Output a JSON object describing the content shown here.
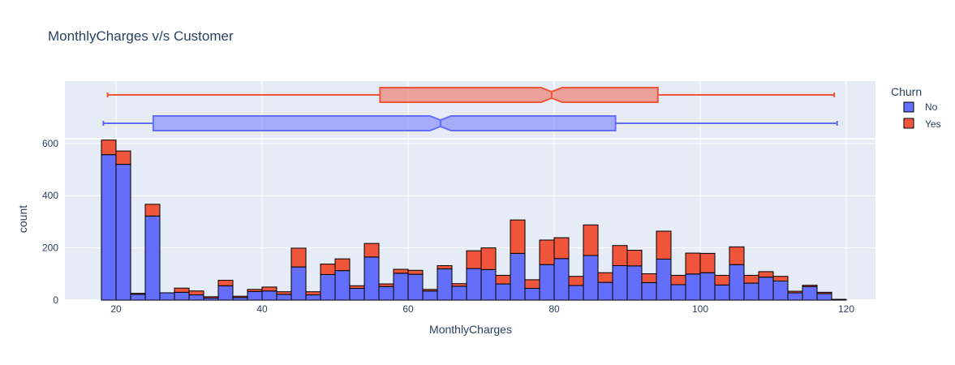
{
  "chart_data": {
    "type": "bar",
    "title": "MonthlyCharges v/s Customer",
    "xlabel": "MonthlyCharges",
    "ylabel": "count",
    "barmode": "stack",
    "xlim": [
      13,
      124
    ],
    "ylim": [
      0,
      615
    ],
    "xticks": [
      "20",
      "40",
      "60",
      "80",
      "100",
      "120"
    ],
    "yticks": [
      "0",
      "200",
      "400",
      "600"
    ],
    "bin_start": 18,
    "bin_width": 2,
    "legend": {
      "title": "Churn",
      "position": "right"
    },
    "series": [
      {
        "name": "No",
        "color": "#636efa",
        "values": [
          557,
          520,
          22,
          322,
          28,
          30,
          20,
          8,
          55,
          10,
          33,
          35,
          22,
          127,
          20,
          98,
          113,
          45,
          165,
          52,
          103,
          99,
          35,
          120,
          53,
          121,
          117,
          62,
          179,
          45,
          136,
          159,
          56,
          171,
          68,
          132,
          131,
          67,
          157,
          59,
          100,
          105,
          58,
          136,
          65,
          88,
          73,
          28,
          52,
          25,
          3
        ]
      },
      {
        "name": "Yes",
        "color": "#ef553b",
        "values": [
          56,
          51,
          4,
          45,
          0,
          16,
          15,
          5,
          21,
          5,
          8,
          15,
          10,
          72,
          12,
          40,
          45,
          10,
          52,
          10,
          15,
          15,
          6,
          12,
          10,
          68,
          83,
          33,
          128,
          33,
          94,
          80,
          35,
          117,
          37,
          77,
          60,
          34,
          107,
          36,
          80,
          74,
          37,
          68,
          30,
          21,
          18,
          6,
          5,
          5,
          0
        ]
      }
    ],
    "boxplots": [
      {
        "name": "Yes",
        "color": "#ef553b",
        "min": 18.85,
        "q1": 56.15,
        "median": 79.65,
        "q3": 94.2,
        "max": 118.35,
        "notch_low": 78.2,
        "notch_high": 81.1
      },
      {
        "name": "No",
        "color": "#636efa",
        "min": 18.25,
        "q1": 25.1,
        "median": 64.43,
        "q3": 88.4,
        "max": 118.75,
        "notch_low": 63.0,
        "notch_high": 65.9
      }
    ]
  }
}
